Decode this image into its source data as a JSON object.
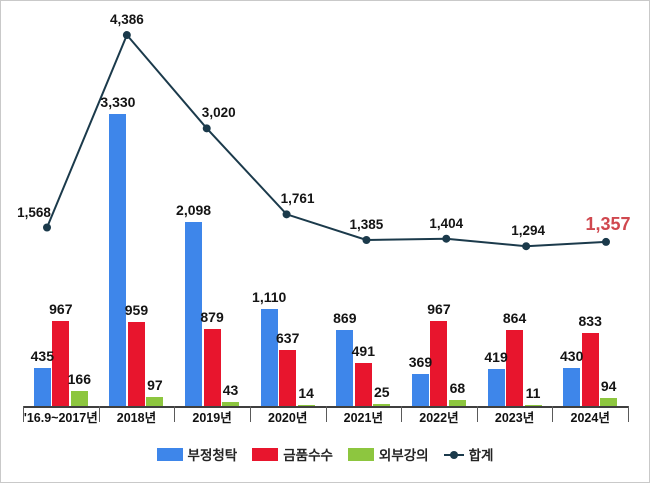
{
  "chart_data": {
    "type": "bar",
    "subtype": "grouped-bars-with-line-overlay",
    "title": "",
    "xlabel": "",
    "ylabel": "",
    "grid": false,
    "legend_position": "bottom",
    "value_labels": true,
    "categories": [
      "'16.9~2017년",
      "2018년",
      "2019년",
      "2020년",
      "2021년",
      "2022년",
      "2023년",
      "2024년"
    ],
    "series": [
      {
        "name": "부정청탁",
        "type": "bar",
        "color": "#3E86EA",
        "values": [
          435,
          3330,
          2098,
          1110,
          869,
          369,
          419,
          430
        ]
      },
      {
        "name": "금품수수",
        "type": "bar",
        "color": "#E8152D",
        "values": [
          967,
          959,
          879,
          637,
          491,
          967,
          864,
          833
        ]
      },
      {
        "name": "외부강의",
        "type": "bar",
        "color": "#8DC63F",
        "values": [
          166,
          97,
          43,
          14,
          25,
          68,
          11,
          94
        ]
      },
      {
        "name": "합계",
        "type": "line",
        "color": "#1B3A4B",
        "values": [
          1568,
          4386,
          3020,
          1761,
          1385,
          1404,
          1294,
          1357
        ]
      }
    ],
    "line_value_labels": [
      "1,568",
      "4,386",
      "3,020",
      "1,761",
      "1,385",
      "1,404",
      "1,294",
      "1,357"
    ],
    "highlight_last_line_value": {
      "label": "1,357",
      "color": "#D0484F"
    },
    "colors": {
      "bar_blue": "#3E86EA",
      "bar_red": "#E8152D",
      "bar_green": "#8DC63F",
      "line": "#1B3A4B",
      "highlight_text": "#D0484F",
      "label_text": "#141414",
      "axis": "#3f3f3f"
    }
  },
  "legend": {
    "items": [
      {
        "label": "부정청탁",
        "marker": "blue-square"
      },
      {
        "label": "금품수수",
        "marker": "red-square"
      },
      {
        "label": "외부강의",
        "marker": "green-square"
      },
      {
        "label": "합계",
        "marker": "line-dot"
      }
    ]
  }
}
